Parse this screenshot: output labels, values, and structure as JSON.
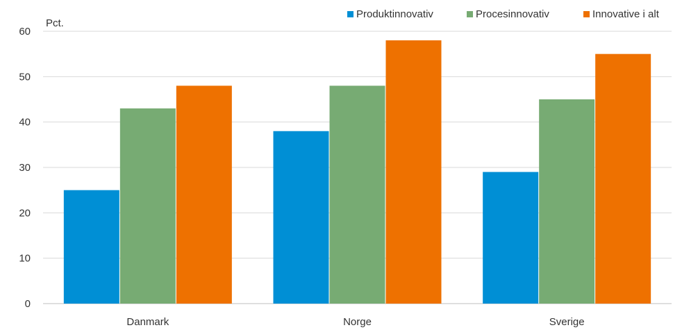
{
  "chart_data": {
    "type": "bar",
    "unit_label": "Pct.",
    "categories": [
      "Danmark",
      "Norge",
      "Sverige"
    ],
    "series": [
      {
        "name": "Produktinnovativ",
        "color": "#008FD5",
        "values": [
          25,
          38,
          29
        ]
      },
      {
        "name": "Procesinnovativ",
        "color": "#77AB73",
        "values": [
          43,
          48,
          45
        ]
      },
      {
        "name": "Innovative i alt",
        "color": "#EE7100",
        "values": [
          48,
          58,
          55
        ]
      }
    ],
    "yticks": [
      "0",
      "10",
      "20",
      "30",
      "40",
      "50",
      "60"
    ],
    "ylim": [
      0,
      60
    ],
    "grid": true,
    "legend_position": "top-right"
  }
}
